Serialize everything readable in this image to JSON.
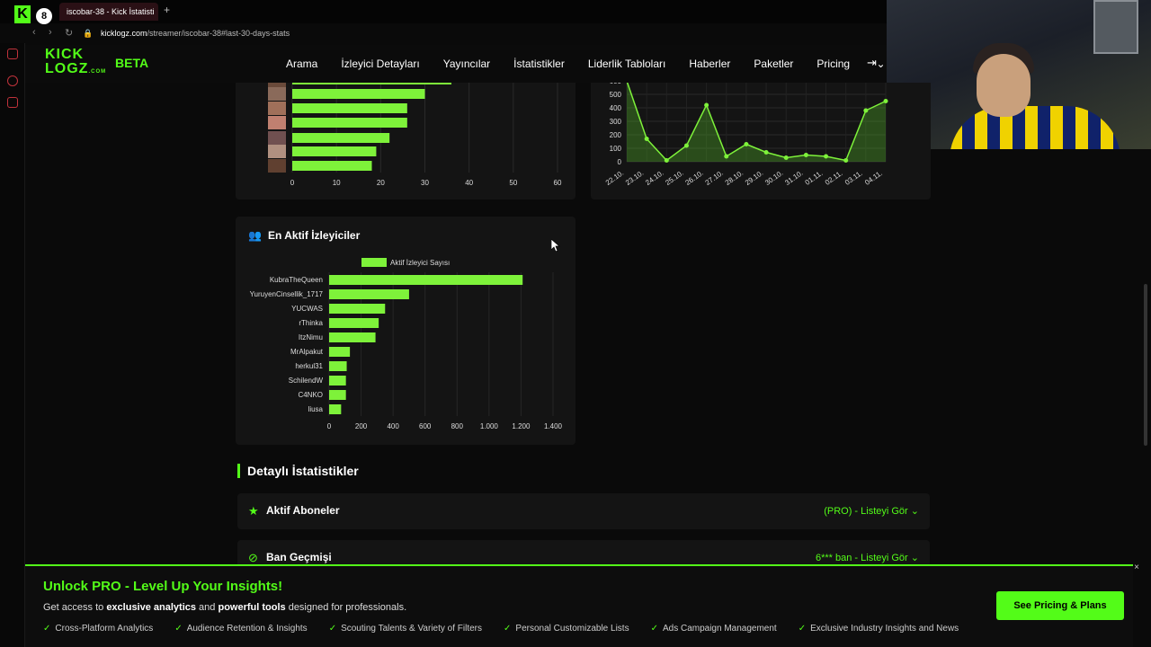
{
  "browser": {
    "tab_badge": "8",
    "tab_title": "iscobar-38 - Kick İstatisti",
    "new_tab": "+",
    "url_domain": "kicklogz.com",
    "url_path": "/streamer/iscobar-38#last-30-days-stats"
  },
  "header": {
    "logo_line1": "KICK",
    "logo_line2": "LOGZ",
    "logo_suffix": ".COM",
    "beta": "BETA",
    "nav": [
      "Arama",
      "İzleyici Detayları",
      "Yayıncılar",
      "İstatistikler",
      "Liderlik Tabloları",
      "Haberler",
      "Paketler",
      "Pricing"
    ],
    "pricing_chevron": "⌄"
  },
  "top_bar_chart": {
    "x_ticks": [
      "0",
      "10",
      "20",
      "30",
      "40",
      "50",
      "60"
    ]
  },
  "top_line_chart": {
    "y_ticks": [
      "0",
      "100",
      "200",
      "300",
      "400",
      "500",
      "600"
    ],
    "x_ticks": [
      "22.10.",
      "23.10.",
      "24.10.",
      "25.10.",
      "26.10.",
      "27.10.",
      "28.10.",
      "29.10.",
      "30.10.",
      "31.10.",
      "01.11.",
      "02.11.",
      "03.11.",
      "04.11."
    ]
  },
  "active_viewers": {
    "title": "En Aktif İzleyiciler",
    "legend": "Aktif İzleyici Sayısı"
  },
  "chart_data": [
    {
      "type": "bar",
      "orientation": "horizontal",
      "title": "",
      "values": [
        36,
        30,
        26,
        26,
        22,
        19,
        18
      ],
      "xlim": [
        0,
        60
      ],
      "color": "#7ef23a"
    },
    {
      "type": "area",
      "title": "",
      "x": [
        "22.10.",
        "23.10.",
        "24.10.",
        "25.10.",
        "26.10.",
        "27.10.",
        "28.10.",
        "29.10.",
        "30.10.",
        "31.10.",
        "01.11.",
        "02.11.",
        "03.11.",
        "04.11."
      ],
      "values": [
        700,
        170,
        10,
        120,
        420,
        40,
        130,
        70,
        30,
        50,
        40,
        10,
        380,
        450
      ],
      "ylim": [
        0,
        600
      ],
      "color": "#7ef23a"
    },
    {
      "type": "bar",
      "orientation": "horizontal",
      "title": "En Aktif İzleyiciler",
      "legend": "Aktif İzleyici Sayısı",
      "categories": [
        "KubraTheQueen",
        "YuruyenCinsellik_1717",
        "YUCWAS",
        "rThinka",
        "ItzNimu",
        "MrAlpakut",
        "herkul31",
        "SchilendW",
        "C4NKO",
        "liusa"
      ],
      "values": [
        1210,
        500,
        350,
        310,
        290,
        130,
        110,
        105,
        105,
        75
      ],
      "xlim": [
        0,
        1400
      ],
      "x_ticks": [
        "0",
        "200",
        "400",
        "600",
        "800",
        "1.000",
        "1.200",
        "1.400"
      ],
      "color": "#7ef23a"
    }
  ],
  "details": {
    "title": "Detaylı İstatistikler",
    "rows": [
      {
        "title": "Aktif Aboneler",
        "right": "(PRO) - Listeyi Gör",
        "icon": "star-icon"
      },
      {
        "title": "Ban Geçmişi",
        "right": "6*** ban - Listeyi Gör",
        "icon": "ban-icon"
      }
    ]
  },
  "promo": {
    "title": "Unlock PRO - Level Up Your Insights!",
    "sub_pre": "Get access to ",
    "sub_b1": "exclusive analytics",
    "sub_mid": " and ",
    "sub_b2": "powerful tools",
    "sub_post": " designed for professionals.",
    "features": [
      "Cross-Platform Analytics",
      "Audience Retention & Insights",
      "Scouting Talents & Variety of Filters",
      "Personal Customizable Lists",
      "Ads Campaign Management",
      "Exclusive Industry Insights and News"
    ],
    "button": "See Pricing & Plans",
    "close": "×"
  }
}
